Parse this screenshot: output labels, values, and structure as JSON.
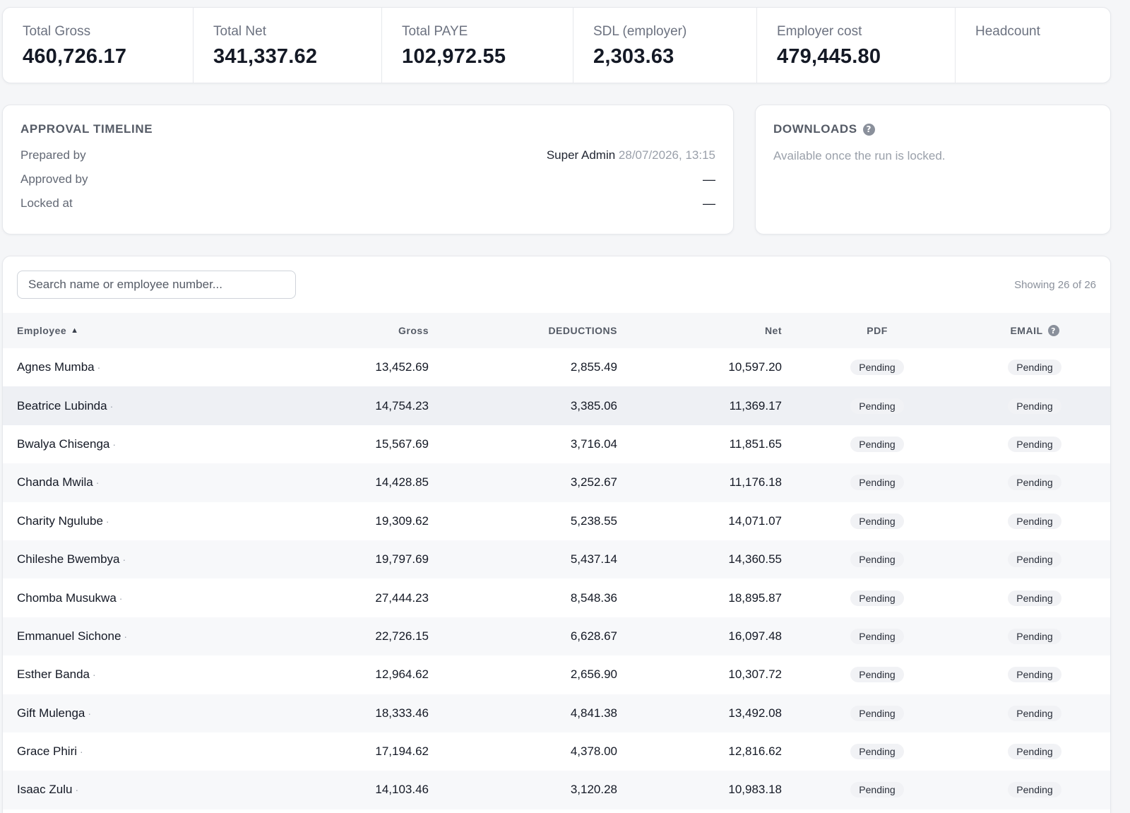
{
  "summary": [
    {
      "label": "Total Gross",
      "value": "460,726.17"
    },
    {
      "label": "Total Net",
      "value": "341,337.62"
    },
    {
      "label": "Total PAYE",
      "value": "102,972.55"
    },
    {
      "label": "SDL (employer)",
      "value": "2,303.63"
    },
    {
      "label": "Employer cost",
      "value": "479,445.80"
    },
    {
      "label": "Headcount",
      "value": ""
    }
  ],
  "timeline": {
    "title": "APPROVAL TIMELINE",
    "prepared_label": "Prepared by",
    "prepared_by": "Super Admin",
    "prepared_at": "28/07/2026, 13:15",
    "approved_label": "Approved by",
    "approved_value": "—",
    "locked_label": "Locked at",
    "locked_value": "—"
  },
  "downloads": {
    "title": "DOWNLOADS",
    "help_glyph": "?",
    "message": "Available once the run is locked."
  },
  "search": {
    "placeholder": "Search name or employee number..."
  },
  "showing": "Showing 26 of 26",
  "table": {
    "headers": {
      "employee": "Employee",
      "sort_glyph": "▲",
      "gross": "Gross",
      "deductions": "DEDUCTIONS",
      "net": "Net",
      "pdf": "PDF",
      "email": "EMAIL",
      "email_help": "?"
    },
    "rows": [
      {
        "name": "Agnes Mumba",
        "gross": "13,452.69",
        "deductions": "2,855.49",
        "net": "10,597.20",
        "pdf": "Pending",
        "email": "Pending"
      },
      {
        "name": "Beatrice Lubinda",
        "gross": "14,754.23",
        "deductions": "3,385.06",
        "net": "11,369.17",
        "pdf": "Pending",
        "email": "Pending"
      },
      {
        "name": "Bwalya Chisenga",
        "gross": "15,567.69",
        "deductions": "3,716.04",
        "net": "11,851.65",
        "pdf": "Pending",
        "email": "Pending"
      },
      {
        "name": "Chanda Mwila",
        "gross": "14,428.85",
        "deductions": "3,252.67",
        "net": "11,176.18",
        "pdf": "Pending",
        "email": "Pending"
      },
      {
        "name": "Charity Ngulube",
        "gross": "19,309.62",
        "deductions": "5,238.55",
        "net": "14,071.07",
        "pdf": "Pending",
        "email": "Pending"
      },
      {
        "name": "Chileshe Bwembya",
        "gross": "19,797.69",
        "deductions": "5,437.14",
        "net": "14,360.55",
        "pdf": "Pending",
        "email": "Pending"
      },
      {
        "name": "Chomba Musukwa",
        "gross": "27,444.23",
        "deductions": "8,548.36",
        "net": "18,895.87",
        "pdf": "Pending",
        "email": "Pending"
      },
      {
        "name": "Emmanuel Sichone",
        "gross": "22,726.15",
        "deductions": "6,628.67",
        "net": "16,097.48",
        "pdf": "Pending",
        "email": "Pending"
      },
      {
        "name": "Esther Banda",
        "gross": "12,964.62",
        "deductions": "2,656.90",
        "net": "10,307.72",
        "pdf": "Pending",
        "email": "Pending"
      },
      {
        "name": "Gift Mulenga",
        "gross": "18,333.46",
        "deductions": "4,841.38",
        "net": "13,492.08",
        "pdf": "Pending",
        "email": "Pending"
      },
      {
        "name": "Grace Phiri",
        "gross": "17,194.62",
        "deductions": "4,378.00",
        "net": "12,816.62",
        "pdf": "Pending",
        "email": "Pending"
      },
      {
        "name": "Isaac Zulu",
        "gross": "14,103.46",
        "deductions": "3,120.28",
        "net": "10,983.18",
        "pdf": "Pending",
        "email": "Pending"
      }
    ]
  }
}
